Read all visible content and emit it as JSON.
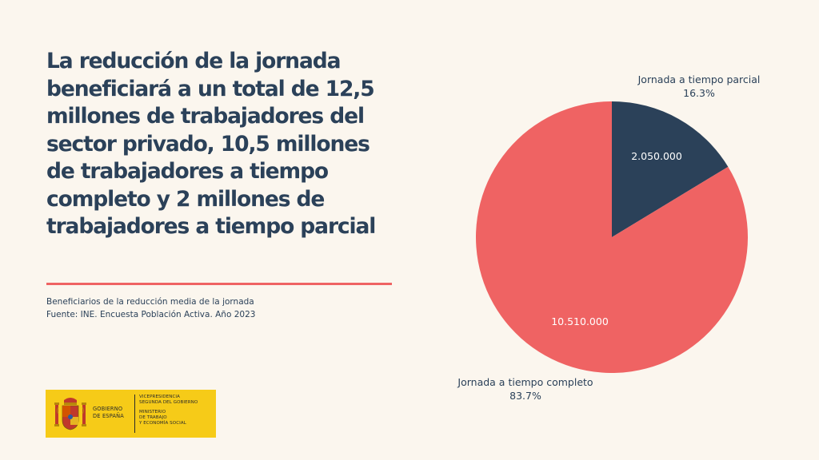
{
  "headline": "La reducción de la jornada beneficiará a un total de 12,5 millones de trabajadores del sector privado, 10,5 millones de trabajadores a tiempo completo y 2 millones de trabajadores a tiempo parcial",
  "caption": {
    "line1": "Beneficiarios de la reducción media de la jornada",
    "line2": "Fuente: INE. Encuesta Población Activa. Año 2023"
  },
  "logo": {
    "gov_line1": "GOBIERNO",
    "gov_line2": "DE ESPAÑA",
    "dept_line1": "VICEPRESIDENCIA",
    "dept_line2": "SEGUNDA DEL GOBIERNO",
    "dept_line3": "MINISTERIO",
    "dept_line4": "DE TRABAJO",
    "dept_line5": "Y ECONOMÍA SOCIAL"
  },
  "colors": {
    "accent": "#ef6363",
    "navy": "#2b4159",
    "background": "#fbf6ee",
    "logo_yellow": "#f6cb18"
  },
  "chart_data": {
    "type": "pie",
    "slices": [
      {
        "name": "Jornada a tiempo parcial",
        "value": 2050000,
        "value_label": "2.050.000",
        "percent_label": "16.3%",
        "color": "#2b4159"
      },
      {
        "name": "Jornada a tiempo completo",
        "value": 10510000,
        "value_label": "10.510.000",
        "percent_label": "83.7%",
        "color": "#ef6363"
      }
    ],
    "start_angle_deg": 0,
    "direction": "clockwise"
  }
}
